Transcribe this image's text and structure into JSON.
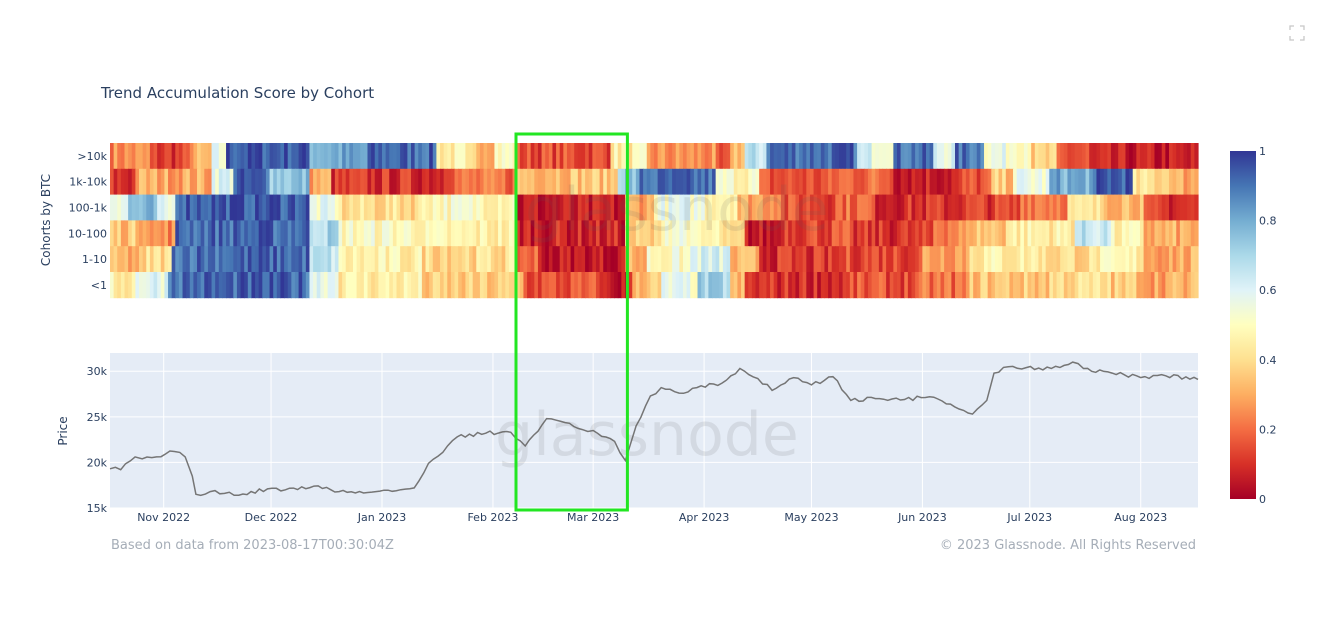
{
  "page": {
    "expand_icon": "fullscreen-icon"
  },
  "chart_data": [
    {
      "type": "heatmap",
      "title": "Trend Accumulation Score by Cohort",
      "ylabel": "Cohorts by BTC",
      "rows": [
        ">10k",
        "1k-10k",
        "100-1k",
        "10-100",
        "1-10",
        "<1"
      ],
      "x_range": [
        "2022-10-17",
        "2023-08-17"
      ],
      "colorscale": {
        "min": 0,
        "max": 1,
        "ticks": [
          "1",
          "0.8",
          "0.6",
          "0.4",
          "0.2",
          "0"
        ],
        "stops": [
          [
            0,
            "#a50026"
          ],
          [
            0.1,
            "#d73027"
          ],
          [
            0.2,
            "#f46d43"
          ],
          [
            0.3,
            "#fdae61"
          ],
          [
            0.4,
            "#fee090"
          ],
          [
            0.5,
            "#ffffbf"
          ],
          [
            0.6,
            "#e0f3f8"
          ],
          [
            0.7,
            "#abd9e9"
          ],
          [
            0.8,
            "#74add1"
          ],
          [
            0.9,
            "#4575b4"
          ],
          [
            1,
            "#313695"
          ]
        ]
      },
      "row_segments": [
        [
          [
            "2022-10-17",
            0.25
          ],
          [
            "2022-10-28",
            0.12
          ],
          [
            "2022-11-08",
            0.3
          ],
          [
            "2022-11-14",
            0.55
          ],
          [
            "2022-11-18",
            0.95
          ],
          [
            "2022-12-12",
            0.8
          ],
          [
            "2022-12-28",
            0.92
          ],
          [
            "2023-01-16",
            0.45
          ],
          [
            "2023-01-24",
            0.35
          ],
          [
            "2023-02-01",
            0.5
          ],
          [
            "2023-02-08",
            0.15
          ],
          [
            "2023-03-06",
            0.45
          ],
          [
            "2023-03-16",
            0.25
          ],
          [
            "2023-04-04",
            0.1
          ],
          [
            "2023-04-08",
            0.35
          ],
          [
            "2023-04-12",
            0.65
          ],
          [
            "2023-04-18",
            0.92
          ],
          [
            "2023-05-14",
            0.6
          ],
          [
            "2023-05-24",
            0.9
          ],
          [
            "2023-06-04",
            0.6
          ],
          [
            "2023-06-10",
            0.9
          ],
          [
            "2023-06-18",
            0.55
          ],
          [
            "2023-07-01",
            0.35
          ],
          [
            "2023-07-08",
            0.15
          ],
          [
            "2023-07-18",
            0.05
          ]
        ],
        [
          [
            "2022-10-17",
            0.1
          ],
          [
            "2022-10-24",
            0.3
          ],
          [
            "2022-11-08",
            0.3
          ],
          [
            "2022-11-14",
            0.6
          ],
          [
            "2022-11-20",
            0.92
          ],
          [
            "2022-12-01",
            0.75
          ],
          [
            "2022-12-12",
            0.3
          ],
          [
            "2022-12-18",
            0.1
          ],
          [
            "2023-01-18",
            0.2
          ],
          [
            "2023-02-08",
            0.35
          ],
          [
            "2023-03-08",
            0.75
          ],
          [
            "2023-03-14",
            0.9
          ],
          [
            "2023-04-04",
            0.5
          ],
          [
            "2023-04-16",
            0.15
          ],
          [
            "2023-05-08",
            0.2
          ],
          [
            "2023-05-24",
            0.08
          ],
          [
            "2023-06-12",
            0.15
          ],
          [
            "2023-06-20",
            0.35
          ],
          [
            "2023-06-26",
            0.55
          ],
          [
            "2023-07-06",
            0.8
          ],
          [
            "2023-07-20",
            0.95
          ],
          [
            "2023-07-30",
            0.4
          ],
          [
            "2023-08-10",
            0.3
          ]
        ],
        [
          [
            "2022-10-17",
            0.6
          ],
          [
            "2022-10-22",
            0.75
          ],
          [
            "2022-10-30",
            0.55
          ],
          [
            "2022-11-04",
            0.95
          ],
          [
            "2022-12-12",
            0.55
          ],
          [
            "2022-12-20",
            0.4
          ],
          [
            "2023-01-12",
            0.5
          ],
          [
            "2023-02-08",
            0.05
          ],
          [
            "2023-03-10",
            0.3
          ],
          [
            "2023-03-18",
            0.55
          ],
          [
            "2023-04-01",
            0.5
          ],
          [
            "2023-04-10",
            0.3
          ],
          [
            "2023-04-22",
            0.15
          ],
          [
            "2023-05-08",
            0.2
          ],
          [
            "2023-05-18",
            0.1
          ],
          [
            "2023-06-10",
            0.12
          ],
          [
            "2023-06-28",
            0.25
          ],
          [
            "2023-07-12",
            0.4
          ],
          [
            "2023-07-22",
            0.35
          ],
          [
            "2023-08-02",
            0.1
          ]
        ],
        [
          [
            "2022-10-17",
            0.35
          ],
          [
            "2022-10-28",
            0.25
          ],
          [
            "2022-11-04",
            0.92
          ],
          [
            "2022-12-12",
            0.7
          ],
          [
            "2022-12-20",
            0.5
          ],
          [
            "2023-01-12",
            0.45
          ],
          [
            "2023-02-08",
            0.08
          ],
          [
            "2023-03-10",
            0.35
          ],
          [
            "2023-03-20",
            0.55
          ],
          [
            "2023-03-28",
            0.45
          ],
          [
            "2023-04-06",
            0.35
          ],
          [
            "2023-04-12",
            0.05
          ],
          [
            "2023-04-22",
            0.15
          ],
          [
            "2023-05-12",
            0.1
          ],
          [
            "2023-06-04",
            0.25
          ],
          [
            "2023-06-14",
            0.35
          ],
          [
            "2023-06-24",
            0.45
          ],
          [
            "2023-07-14",
            0.65
          ],
          [
            "2023-07-24",
            0.45
          ],
          [
            "2023-08-02",
            0.3
          ]
        ],
        [
          [
            "2022-10-17",
            0.3
          ],
          [
            "2022-10-27",
            0.4
          ],
          [
            "2022-11-03",
            0.92
          ],
          [
            "2022-12-12",
            0.65
          ],
          [
            "2022-12-20",
            0.45
          ],
          [
            "2023-01-12",
            0.4
          ],
          [
            "2023-02-08",
            0.2
          ],
          [
            "2023-02-14",
            0.05
          ],
          [
            "2023-03-10",
            0.3
          ],
          [
            "2023-03-16",
            0.5
          ],
          [
            "2023-03-28",
            0.6
          ],
          [
            "2023-04-08",
            0.3
          ],
          [
            "2023-04-16",
            0.1
          ],
          [
            "2023-05-10",
            0.15
          ],
          [
            "2023-06-01",
            0.3
          ],
          [
            "2023-06-14",
            0.45
          ],
          [
            "2023-07-04",
            0.4
          ],
          [
            "2023-07-20",
            0.45
          ],
          [
            "2023-08-02",
            0.3
          ]
        ],
        [
          [
            "2022-10-17",
            0.45
          ],
          [
            "2022-10-24",
            0.6
          ],
          [
            "2022-11-02",
            0.92
          ],
          [
            "2022-12-12",
            0.6
          ],
          [
            "2022-12-20",
            0.45
          ],
          [
            "2023-01-12",
            0.35
          ],
          [
            "2023-02-10",
            0.15
          ],
          [
            "2023-03-04",
            0.05
          ],
          [
            "2023-03-12",
            0.35
          ],
          [
            "2023-03-20",
            0.55
          ],
          [
            "2023-03-30",
            0.7
          ],
          [
            "2023-04-08",
            0.3
          ],
          [
            "2023-04-12",
            0.1
          ],
          [
            "2023-05-12",
            0.15
          ],
          [
            "2023-06-01",
            0.2
          ],
          [
            "2023-06-14",
            0.35
          ],
          [
            "2023-07-06",
            0.4
          ],
          [
            "2023-07-24",
            0.35
          ],
          [
            "2023-08-02",
            0.3
          ]
        ]
      ]
    },
    {
      "type": "line",
      "ylabel": "Price",
      "ylim": [
        15000,
        32000
      ],
      "yticks": [
        "15k",
        "20k",
        "25k",
        "30k"
      ],
      "xticks": [
        "Nov 2022",
        "Dec 2022",
        "Jan 2023",
        "Feb 2023",
        "Mar 2023",
        "Apr 2023",
        "May 2023",
        "Jun 2023",
        "Jul 2023",
        "Aug 2023"
      ],
      "grid": true,
      "series": [
        {
          "x": [
            "2022-10-17",
            "2022-10-20",
            "2022-10-24",
            "2022-10-26",
            "2022-10-30",
            "2022-11-04",
            "2022-11-07",
            "2022-11-09",
            "2022-11-10",
            "2022-11-14",
            "2022-11-18",
            "2022-11-22",
            "2022-11-30",
            "2022-12-05",
            "2022-12-13",
            "2022-12-20",
            "2022-12-28",
            "2023-01-05",
            "2023-01-10",
            "2023-01-14",
            "2023-01-18",
            "2023-01-22",
            "2023-01-30",
            "2023-02-06",
            "2023-02-10",
            "2023-02-16",
            "2023-02-20",
            "2023-02-26",
            "2023-03-01",
            "2023-03-07",
            "2023-03-10",
            "2023-03-13",
            "2023-03-17",
            "2023-03-20",
            "2023-03-25",
            "2023-03-30",
            "2023-04-06",
            "2023-04-11",
            "2023-04-16",
            "2023-04-20",
            "2023-04-26",
            "2023-05-01",
            "2023-05-07",
            "2023-05-12",
            "2023-05-20",
            "2023-05-27",
            "2023-06-03",
            "2023-06-10",
            "2023-06-15",
            "2023-06-19",
            "2023-06-21",
            "2023-06-25",
            "2023-06-30",
            "2023-07-07",
            "2023-07-13",
            "2023-07-16",
            "2023-07-24",
            "2023-08-01",
            "2023-08-08",
            "2023-08-17"
          ],
          "y": [
            19300,
            19200,
            20600,
            20400,
            20600,
            21200,
            20600,
            18500,
            16500,
            16800,
            16600,
            16400,
            17100,
            17000,
            17400,
            16800,
            16700,
            16900,
            17200,
            19900,
            21100,
            22800,
            23200,
            23300,
            21800,
            24800,
            24500,
            23600,
            23500,
            22300,
            20200,
            24000,
            27300,
            28200,
            27600,
            28200,
            28700,
            30300,
            29200,
            27900,
            29300,
            28500,
            29400,
            26800,
            27000,
            26900,
            27200,
            26100,
            25300,
            26800,
            29800,
            30500,
            30400,
            30300,
            31000,
            30300,
            29800,
            29300,
            29500,
            29100
          ]
        }
      ]
    }
  ],
  "annotations": {
    "highlight_box": {
      "from": "2023-02-08",
      "to": "2023-03-10",
      "color": "#22e622"
    },
    "watermark": "glassnode"
  },
  "footer": {
    "left": "Based on data from 2023-08-17T00:30:04Z",
    "right": "© 2023 Glassnode. All Rights Reserved"
  }
}
